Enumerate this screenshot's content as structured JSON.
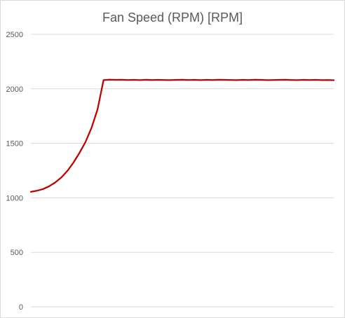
{
  "chart_data": {
    "type": "line",
    "title": "Fan Speed (RPM) [RPM]",
    "xlabel": "",
    "ylabel": "",
    "ylim": [
      0,
      2500
    ],
    "y_ticks": [
      0,
      500,
      1000,
      1500,
      2000,
      2500
    ],
    "x_tick_labels": [],
    "grid": true,
    "legend": "none",
    "series": [
      {
        "color": "#c00000",
        "x": [
          0,
          2,
          4,
          6,
          8,
          10,
          12,
          14,
          16,
          18,
          20,
          22,
          24,
          26,
          28,
          30,
          32,
          34,
          36,
          38,
          40,
          42,
          44,
          46,
          48,
          50,
          52,
          54,
          56,
          58,
          60,
          62,
          64,
          66,
          68,
          70,
          72,
          74,
          76,
          78,
          80,
          82,
          84,
          86,
          88,
          90,
          92,
          94,
          96,
          98,
          100
        ],
        "values": [
          1055,
          1065,
          1080,
          1105,
          1140,
          1185,
          1245,
          1320,
          1410,
          1510,
          1640,
          1810,
          2080,
          2084,
          2082,
          2083,
          2081,
          2082,
          2080,
          2083,
          2081,
          2082,
          2081,
          2080,
          2082,
          2083,
          2081,
          2082,
          2080,
          2082,
          2081,
          2083,
          2082,
          2081,
          2080,
          2082,
          2081,
          2083,
          2082,
          2080,
          2081,
          2082,
          2083,
          2081,
          2080,
          2082,
          2081,
          2082,
          2080,
          2081,
          2079
        ]
      }
    ]
  }
}
